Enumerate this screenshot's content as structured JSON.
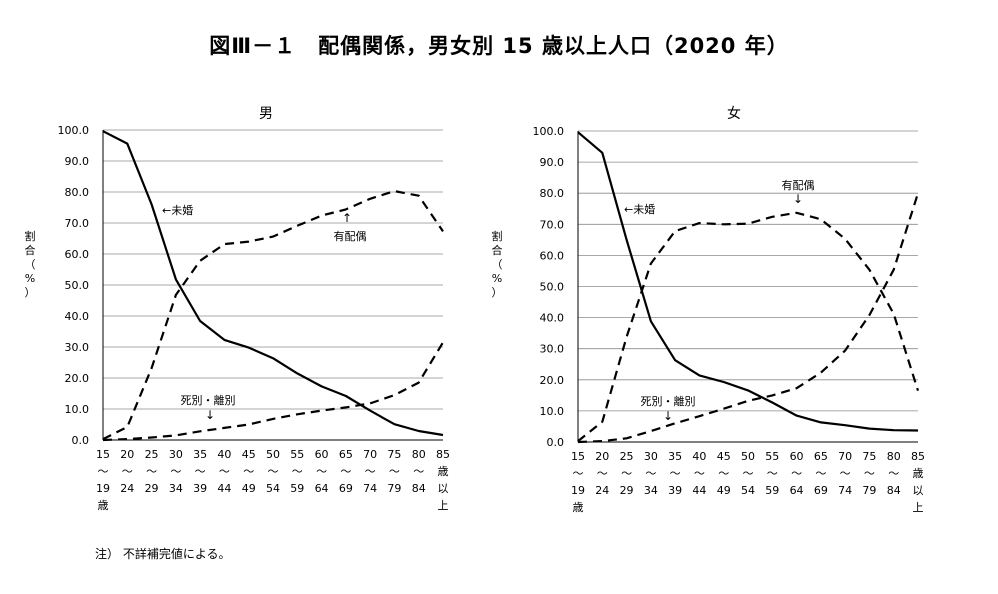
{
  "figure": {
    "title": "図Ⅲ－１　配偶関係，男女別 15 歳以上人口（2020 年）",
    "note": "注） 不詳補完値による。"
  },
  "chart_data": [
    {
      "type": "line",
      "title": "男",
      "ylabel": [
        "割",
        "合",
        "（",
        "%",
        "）"
      ],
      "ylim": [
        0,
        100
      ],
      "yticks": [
        "0.0",
        "10.0",
        "20.0",
        "30.0",
        "40.0",
        "50.0",
        "60.0",
        "70.0",
        "80.0",
        "90.0",
        "100.0"
      ],
      "categories": [
        [
          "15",
          "～",
          "19",
          "歳"
        ],
        [
          "20",
          "～",
          "24"
        ],
        [
          "25",
          "～",
          "29"
        ],
        [
          "30",
          "～",
          "34"
        ],
        [
          "35",
          "～",
          "39"
        ],
        [
          "40",
          "～",
          "44"
        ],
        [
          "45",
          "～",
          "49"
        ],
        [
          "50",
          "～",
          "54"
        ],
        [
          "55",
          "～",
          "59"
        ],
        [
          "60",
          "～",
          "64"
        ],
        [
          "65",
          "～",
          "69"
        ],
        [
          "70",
          "～",
          "74"
        ],
        [
          "75",
          "～",
          "79"
        ],
        [
          "80",
          "～",
          "84"
        ],
        [
          "85",
          "歳",
          "以",
          "上"
        ]
      ],
      "series": [
        {
          "name": "未婚",
          "style": "solid",
          "values": [
            99.6,
            95.6,
            76.0,
            51.8,
            38.4,
            32.3,
            29.8,
            26.4,
            21.5,
            17.3,
            14.2,
            9.5,
            5.1,
            2.9,
            1.6
          ]
        },
        {
          "name": "有配偶",
          "style": "dashed",
          "values": [
            0.3,
            4.2,
            23.2,
            46.8,
            57.8,
            63.2,
            64.0,
            65.6,
            69.1,
            72.4,
            74.4,
            77.8,
            80.3,
            78.8,
            67.3
          ]
        },
        {
          "name": "死別・離別",
          "style": "dashed",
          "values": [
            0.0,
            0.3,
            0.8,
            1.5,
            2.8,
            3.9,
            5.0,
            6.8,
            8.3,
            9.5,
            10.5,
            11.8,
            14.5,
            18.5,
            31.5
          ]
        }
      ],
      "annotations": [
        {
          "text": "←未婚",
          "target": "未婚"
        },
        {
          "text": "有配偶",
          "arrow": "↑",
          "target": "有配偶"
        },
        {
          "text": "死別・離別",
          "arrow": "↓",
          "target": "死別・離別"
        }
      ],
      "grid": true
    },
    {
      "type": "line",
      "title": "女",
      "ylabel": [
        "割",
        "合",
        "（",
        "%",
        "）"
      ],
      "ylim": [
        0,
        100
      ],
      "yticks": [
        "0.0",
        "10.0",
        "20.0",
        "30.0",
        "40.0",
        "50.0",
        "60.0",
        "70.0",
        "80.0",
        "90.0",
        "100.0"
      ],
      "categories": [
        [
          "15",
          "～",
          "19",
          "歳"
        ],
        [
          "20",
          "～",
          "24"
        ],
        [
          "25",
          "～",
          "29"
        ],
        [
          "30",
          "～",
          "34"
        ],
        [
          "35",
          "～",
          "39"
        ],
        [
          "40",
          "～",
          "44"
        ],
        [
          "45",
          "～",
          "49"
        ],
        [
          "50",
          "～",
          "54"
        ],
        [
          "55",
          "～",
          "59"
        ],
        [
          "60",
          "～",
          "64"
        ],
        [
          "65",
          "～",
          "69"
        ],
        [
          "70",
          "～",
          "74"
        ],
        [
          "75",
          "～",
          "79"
        ],
        [
          "80",
          "～",
          "84"
        ],
        [
          "85",
          "歳",
          "以",
          "上"
        ]
      ],
      "series": [
        {
          "name": "未婚",
          "style": "solid",
          "values": [
            99.6,
            93.0,
            65.0,
            38.8,
            26.3,
            21.4,
            19.3,
            16.6,
            12.7,
            8.5,
            6.3,
            5.4,
            4.3,
            3.8,
            3.7
          ]
        },
        {
          "name": "有配偶",
          "style": "dashed",
          "values": [
            0.3,
            6.5,
            33.8,
            57.4,
            67.8,
            70.4,
            70.0,
            70.2,
            72.4,
            73.7,
            71.6,
            65.3,
            55.4,
            41.2,
            16.5
          ]
        },
        {
          "name": "死別・離別",
          "style": "dashed",
          "values": [
            0.0,
            0.3,
            1.2,
            3.5,
            6.0,
            8.3,
            10.7,
            13.2,
            15.0,
            17.3,
            22.3,
            29.4,
            40.8,
            55.4,
            80.0
          ]
        }
      ],
      "annotations": [
        {
          "text": "←未婚",
          "target": "未婚"
        },
        {
          "text": "有配偶",
          "arrow": "↓",
          "target": "有配偶"
        },
        {
          "text": "死別・離別",
          "arrow": "↓",
          "target": "死別・離別"
        }
      ],
      "grid": true
    }
  ]
}
